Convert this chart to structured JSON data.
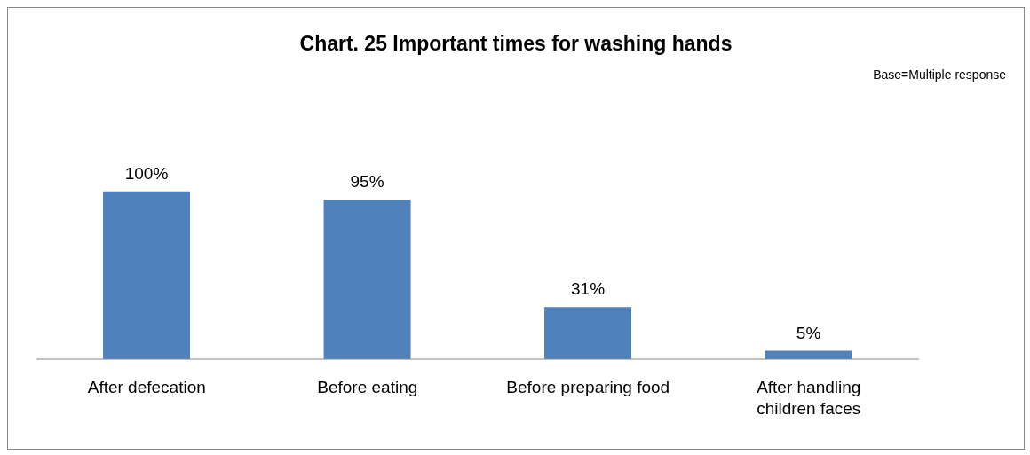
{
  "chart_data": {
    "type": "bar",
    "title": "Chart. 25 Important times for washing hands",
    "annotations": [
      "Base=Multiple response"
    ],
    "categories": [
      "After defecation",
      "Before eating",
      "Before preparing food",
      "After handling children faces"
    ],
    "values": [
      100,
      95,
      31,
      5
    ],
    "value_labels": [
      "100%",
      "95%",
      "31%",
      "5%"
    ],
    "color": "#4f81bd",
    "grid": false,
    "legend": false
  }
}
